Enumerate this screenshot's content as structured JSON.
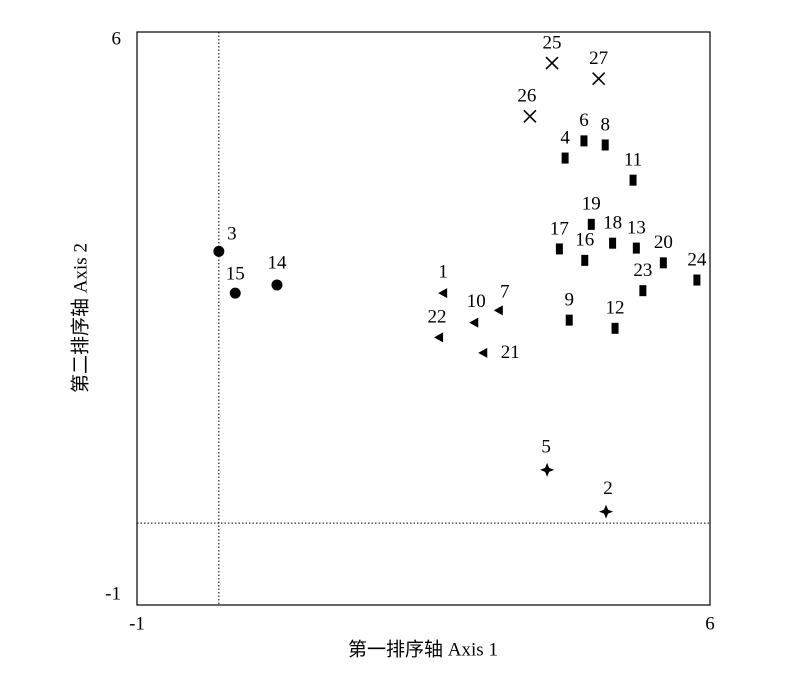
{
  "chart_data": {
    "type": "scatter",
    "x_label": "第一排序轴 Axis 1",
    "y_label": "第二排序轴 Axis 2",
    "xlim": [
      -1,
      6
    ],
    "ylim": [
      -1,
      6
    ],
    "xticks": [
      -1,
      6
    ],
    "yticks": [
      -1,
      6
    ],
    "vline": 0,
    "hline": 0,
    "series": [
      {
        "marker": "circle",
        "color": "#000000",
        "labels": [
          "3",
          "15",
          "14"
        ],
        "x": [
          0.0,
          0.2,
          0.71
        ],
        "y": [
          3.32,
          2.81,
          2.91
        ]
      },
      {
        "marker": "triangle-left",
        "color": "#000000",
        "labels": [
          "1",
          "7",
          "10",
          "22",
          "21"
        ],
        "x": [
          2.74,
          3.42,
          3.12,
          2.69,
          3.23
        ],
        "y": [
          2.81,
          2.6,
          2.45,
          2.27,
          2.08
        ]
      },
      {
        "marker": "square",
        "color": "#000000",
        "labels": [
          "4",
          "6",
          "8",
          "11",
          "19",
          "17",
          "18",
          "13",
          "16",
          "20",
          "24",
          "23",
          "9",
          "12"
        ],
        "x": [
          4.23,
          4.46,
          4.72,
          5.06,
          4.55,
          4.16,
          4.81,
          5.1,
          4.47,
          5.43,
          5.84,
          5.18,
          4.28,
          4.84
        ],
        "y": [
          4.46,
          4.67,
          4.62,
          4.19,
          3.65,
          3.35,
          3.42,
          3.36,
          3.21,
          3.18,
          2.97,
          2.84,
          2.48,
          2.38
        ]
      },
      {
        "marker": "cross",
        "color": "#000000",
        "labels": [
          "25",
          "27",
          "26"
        ],
        "x": [
          4.07,
          4.64,
          3.8
        ],
        "y": [
          5.62,
          5.43,
          4.97
        ]
      },
      {
        "marker": "star",
        "color": "#000000",
        "labels": [
          "5",
          "2"
        ],
        "x": [
          4.01,
          4.73
        ],
        "y": [
          0.65,
          0.14
        ]
      }
    ]
  }
}
